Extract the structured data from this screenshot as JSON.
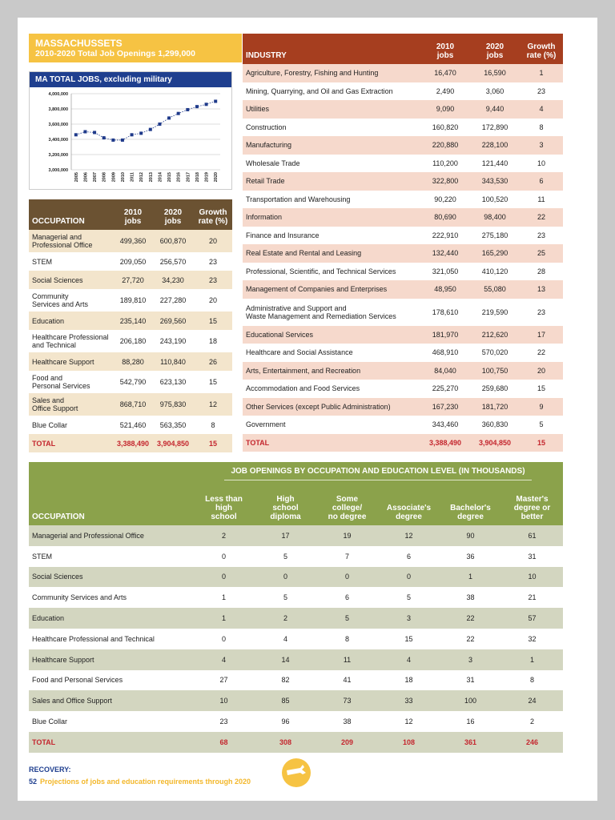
{
  "header": {
    "title": "MASSACHUSSETS",
    "subtitle": "2010-2020 Total Job Openings 1,299,000"
  },
  "chart_data": {
    "type": "line",
    "title": "MA TOTAL JOBS, excluding military",
    "categories": [
      "2005",
      "2006",
      "2007",
      "2008",
      "2009",
      "2010",
      "2011",
      "2012",
      "2013",
      "2014",
      "2015",
      "2016",
      "2017",
      "2018",
      "2019",
      "2020"
    ],
    "values": [
      3460000,
      3500000,
      3490000,
      3420000,
      3390000,
      3390000,
      3460000,
      3480000,
      3530000,
      3600000,
      3680000,
      3740000,
      3790000,
      3830000,
      3860000,
      3900000
    ],
    "color": "#1f3a8a",
    "ylim": [
      3000000,
      4000000
    ],
    "yticks": [
      {
        "value": 3000000,
        "label": "3,000,000"
      },
      {
        "value": 3200000,
        "label": "3,200,000"
      },
      {
        "value": 3400000,
        "label": "3,400,000"
      },
      {
        "value": 3600000,
        "label": "3,600,000"
      },
      {
        "value": 3800000,
        "label": "3,800,000"
      },
      {
        "value": 4000000,
        "label": "4,000,000"
      }
    ],
    "grid": true
  },
  "occupation_table": {
    "columns": [
      "OCCUPATION",
      "2010\njobs",
      "2020\njobs",
      "Growth\nrate (%)"
    ],
    "rows": [
      [
        "Managerial and\nProfessional Office",
        "499,360",
        "600,870",
        "20"
      ],
      [
        "STEM",
        "209,050",
        "256,570",
        "23"
      ],
      [
        "Social Sciences",
        "27,720",
        "34,230",
        "23"
      ],
      [
        "Community\nServices and Arts",
        "189,810",
        "227,280",
        "20"
      ],
      [
        "Education",
        "235,140",
        "269,560",
        "15"
      ],
      [
        "Healthcare Professional\nand Technical",
        "206,180",
        "243,190",
        "18"
      ],
      [
        "Healthcare Support",
        "88,280",
        "110,840",
        "26"
      ],
      [
        "Food and\nPersonal Services",
        "542,790",
        "623,130",
        "15"
      ],
      [
        "Sales and\nOffice Support",
        "868,710",
        "975,830",
        "12"
      ],
      [
        "Blue Collar",
        "521,460",
        "563,350",
        "8"
      ]
    ],
    "total": [
      "TOTAL",
      "3,388,490",
      "3,904,850",
      "15"
    ]
  },
  "industry_table": {
    "columns": [
      "INDUSTRY",
      "2010\njobs",
      "2020\njobs",
      "Growth\nrate (%)"
    ],
    "rows": [
      [
        "Agriculture, Forestry, Fishing and Hunting",
        "16,470",
        "16,590",
        "1"
      ],
      [
        "Mining, Quarrying, and Oil and Gas Extraction",
        "2,490",
        "3,060",
        "23"
      ],
      [
        "Utilities",
        "9,090",
        "9,440",
        "4"
      ],
      [
        "Construction",
        "160,820",
        "172,890",
        "8"
      ],
      [
        "Manufacturing",
        "220,880",
        "228,100",
        "3"
      ],
      [
        "Wholesale Trade",
        "110,200",
        "121,440",
        "10"
      ],
      [
        "Retail Trade",
        "322,800",
        "343,530",
        "6"
      ],
      [
        "Transportation and Warehousing",
        "90,220",
        "100,520",
        "11"
      ],
      [
        "Information",
        "80,690",
        "98,400",
        "22"
      ],
      [
        "Finance and Insurance",
        "222,910",
        "275,180",
        "23"
      ],
      [
        "Real Estate and Rental and Leasing",
        "132,440",
        "165,290",
        "25"
      ],
      [
        "Professional, Scientific, and Technical Services",
        "321,050",
        "410,120",
        "28"
      ],
      [
        "Management of Companies and Enterprises",
        "48,950",
        "55,080",
        "13"
      ],
      [
        "Administrative and Support and\nWaste Management and Remediation Services",
        "178,610",
        "219,590",
        "23"
      ],
      [
        "Educational Services",
        "181,970",
        "212,620",
        "17"
      ],
      [
        "Healthcare and Social Assistance",
        "468,910",
        "570,020",
        "22"
      ],
      [
        "Arts, Entertainment, and Recreation",
        "84,040",
        "100,750",
        "20"
      ],
      [
        "Accommodation and Food Services",
        "225,270",
        "259,680",
        "15"
      ],
      [
        "Other Services (except Public Administration)",
        "167,230",
        "181,720",
        "9"
      ],
      [
        "Government",
        "343,460",
        "360,830",
        "5"
      ]
    ],
    "total": [
      "TOTAL",
      "3,388,490",
      "3,904,850",
      "15"
    ]
  },
  "education_table": {
    "title": "JOB OPENINGS BY OCCUPATION AND EDUCATION LEVEL (IN THOUSANDS)",
    "columns": [
      "OCCUPATION",
      "Less than\nhigh\nschool",
      "High\nschool\ndiploma",
      "Some\ncollege/\nno degree",
      "Associate's\ndegree",
      "Bachelor's\ndegree",
      "Master's\ndegree or\nbetter"
    ],
    "rows": [
      [
        "Managerial and Professional Office",
        "2",
        "17",
        "19",
        "12",
        "90",
        "61"
      ],
      [
        "STEM",
        "0",
        "5",
        "7",
        "6",
        "36",
        "31"
      ],
      [
        "Social Sciences",
        "0",
        "0",
        "0",
        "0",
        "1",
        "10"
      ],
      [
        "Community Services and Arts",
        "1",
        "5",
        "6",
        "5",
        "38",
        "21"
      ],
      [
        "Education",
        "1",
        "2",
        "5",
        "3",
        "22",
        "57"
      ],
      [
        "Healthcare Professional and Technical",
        "0",
        "4",
        "8",
        "15",
        "22",
        "32"
      ],
      [
        "Healthcare Support",
        "4",
        "14",
        "11",
        "4",
        "3",
        "1"
      ],
      [
        "Food and Personal Services",
        "27",
        "82",
        "41",
        "18",
        "31",
        "8"
      ],
      [
        "Sales and Office Support",
        "10",
        "85",
        "73",
        "33",
        "100",
        "24"
      ],
      [
        "Blue Collar",
        "23",
        "96",
        "38",
        "12",
        "16",
        "2"
      ]
    ],
    "total": [
      "TOTAL",
      "68",
      "308",
      "209",
      "108",
      "361",
      "246"
    ]
  },
  "footer": {
    "series": "RECOVERY:",
    "page": "52",
    "subtitle": "Projections of jobs and education requirements through 2020"
  }
}
